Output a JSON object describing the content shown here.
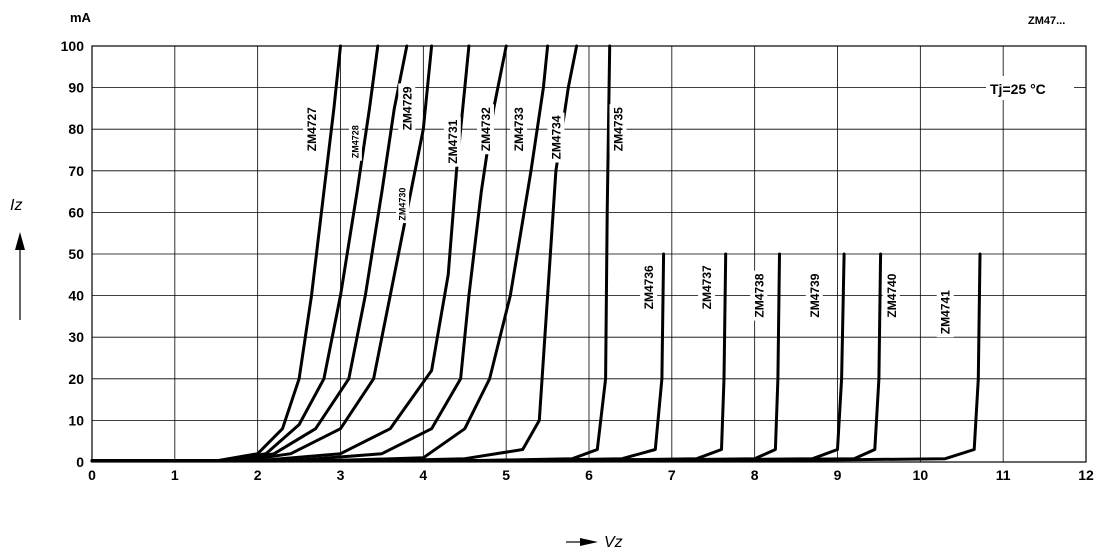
{
  "header": {
    "part_label": "ZM47..."
  },
  "chart_data": {
    "type": "line",
    "title": "",
    "xlabel": "Vz",
    "ylabel": "Iz",
    "y_unit": "mA",
    "xlim": [
      0,
      12
    ],
    "ylim": [
      0,
      100
    ],
    "x_ticks": [
      "0",
      "1",
      "2",
      "3",
      "4",
      "5",
      "6",
      "7",
      "8",
      "9",
      "10",
      "11",
      "12"
    ],
    "y_ticks": [
      "0",
      "10",
      "20",
      "30",
      "40",
      "50",
      "60",
      "70",
      "80",
      "90",
      "100"
    ],
    "grid": true,
    "condition": "Tj=25 °C",
    "series": [
      {
        "name": "ZM4727",
        "label_at": [
          2.65,
          80
        ],
        "label_small": false,
        "points": [
          [
            0,
            0.3
          ],
          [
            1.5,
            0.3
          ],
          [
            2.0,
            2
          ],
          [
            2.3,
            8
          ],
          [
            2.5,
            20
          ],
          [
            2.65,
            40
          ],
          [
            2.8,
            65
          ],
          [
            2.92,
            85
          ],
          [
            3.0,
            100
          ]
        ]
      },
      {
        "name": "ZM4728",
        "label_at": [
          3.18,
          77
        ],
        "label_small": true,
        "points": [
          [
            0,
            0.3
          ],
          [
            1.6,
            0.3
          ],
          [
            2.1,
            2
          ],
          [
            2.5,
            9
          ],
          [
            2.8,
            20
          ],
          [
            3.0,
            40
          ],
          [
            3.2,
            65
          ],
          [
            3.35,
            85
          ],
          [
            3.45,
            100
          ]
        ]
      },
      {
        "name": "ZM4729",
        "label_at": [
          3.8,
          85
        ],
        "label_small": false,
        "points": [
          [
            0,
            0.3
          ],
          [
            1.7,
            0.3
          ],
          [
            2.2,
            2
          ],
          [
            2.7,
            8
          ],
          [
            3.1,
            20
          ],
          [
            3.3,
            40
          ],
          [
            3.5,
            65
          ],
          [
            3.65,
            85
          ],
          [
            3.8,
            100
          ]
        ]
      },
      {
        "name": "ZM4730",
        "label_at": [
          3.75,
          62
        ],
        "label_small": true,
        "points": [
          [
            0,
            0.3
          ],
          [
            1.8,
            0.3
          ],
          [
            2.4,
            2
          ],
          [
            3.0,
            8
          ],
          [
            3.4,
            20
          ],
          [
            3.6,
            40
          ],
          [
            3.85,
            65
          ],
          [
            4.0,
            80
          ],
          [
            4.1,
            100
          ]
        ]
      },
      {
        "name": "ZM4731",
        "label_at": [
          4.35,
          77
        ],
        "label_small": false,
        "points": [
          [
            0,
            0.3
          ],
          [
            2.0,
            0.3
          ],
          [
            3.0,
            2
          ],
          [
            3.6,
            8
          ],
          [
            4.1,
            22
          ],
          [
            4.3,
            45
          ],
          [
            4.4,
            70
          ],
          [
            4.5,
            90
          ],
          [
            4.55,
            100
          ]
        ]
      },
      {
        "name": "ZM4732",
        "label_at": [
          4.75,
          80
        ],
        "label_small": false,
        "points": [
          [
            0,
            0.3
          ],
          [
            2.4,
            0.3
          ],
          [
            3.5,
            2
          ],
          [
            4.1,
            8
          ],
          [
            4.45,
            20
          ],
          [
            4.55,
            40
          ],
          [
            4.7,
            65
          ],
          [
            4.85,
            85
          ],
          [
            5.0,
            100
          ]
        ]
      },
      {
        "name": "ZM4733",
        "label_at": [
          5.15,
          80
        ],
        "label_small": false,
        "points": [
          [
            0,
            0.3
          ],
          [
            2.8,
            0.3
          ],
          [
            4.0,
            1
          ],
          [
            4.5,
            8
          ],
          [
            4.8,
            20
          ],
          [
            5.05,
            40
          ],
          [
            5.3,
            70
          ],
          [
            5.45,
            90
          ],
          [
            5.5,
            100
          ]
        ]
      },
      {
        "name": "ZM4734",
        "label_at": [
          5.6,
          78
        ],
        "label_small": false,
        "points": [
          [
            0,
            0.3
          ],
          [
            3.5,
            0.3
          ],
          [
            4.5,
            0.8
          ],
          [
            5.2,
            3
          ],
          [
            5.4,
            10
          ],
          [
            5.5,
            40
          ],
          [
            5.6,
            70
          ],
          [
            5.75,
            90
          ],
          [
            5.85,
            100
          ]
        ]
      },
      {
        "name": "ZM4735",
        "label_at": [
          6.35,
          80
        ],
        "label_small": false,
        "points": [
          [
            0,
            0.3
          ],
          [
            4.5,
            0.3
          ],
          [
            5.8,
            0.8
          ],
          [
            6.1,
            3
          ],
          [
            6.2,
            20
          ],
          [
            6.22,
            60
          ],
          [
            6.25,
            100
          ]
        ]
      },
      {
        "name": "ZM4736",
        "label_at": [
          6.72,
          42
        ],
        "label_small": false,
        "points": [
          [
            0,
            0.3
          ],
          [
            5.0,
            0.3
          ],
          [
            6.4,
            0.8
          ],
          [
            6.8,
            3
          ],
          [
            6.88,
            20
          ],
          [
            6.9,
            50
          ]
        ]
      },
      {
        "name": "ZM4737",
        "label_at": [
          7.42,
          42
        ],
        "label_small": false,
        "points": [
          [
            0,
            0.3
          ],
          [
            5.5,
            0.3
          ],
          [
            7.3,
            0.8
          ],
          [
            7.6,
            3
          ],
          [
            7.63,
            20
          ],
          [
            7.65,
            50
          ]
        ]
      },
      {
        "name": "ZM4738",
        "label_at": [
          8.05,
          40
        ],
        "label_small": false,
        "points": [
          [
            0,
            0.3
          ],
          [
            6.0,
            0.3
          ],
          [
            8.0,
            0.8
          ],
          [
            8.25,
            3
          ],
          [
            8.28,
            20
          ],
          [
            8.3,
            50
          ]
        ]
      },
      {
        "name": "ZM4739",
        "label_at": [
          8.72,
          40
        ],
        "label_small": false,
        "points": [
          [
            0,
            0.3
          ],
          [
            6.5,
            0.3
          ],
          [
            8.7,
            0.8
          ],
          [
            9.0,
            3
          ],
          [
            9.05,
            20
          ],
          [
            9.08,
            50
          ]
        ]
      },
      {
        "name": "ZM4740",
        "label_at": [
          9.65,
          40
        ],
        "label_small": false,
        "points": [
          [
            0,
            0.3
          ],
          [
            7.0,
            0.3
          ],
          [
            9.2,
            0.8
          ],
          [
            9.45,
            3
          ],
          [
            9.5,
            20
          ],
          [
            9.52,
            50
          ]
        ]
      },
      {
        "name": "ZM4741",
        "label_at": [
          10.3,
          36
        ],
        "label_small": false,
        "points": [
          [
            0,
            0.3
          ],
          [
            8.0,
            0.3
          ],
          [
            10.3,
            0.8
          ],
          [
            10.65,
            3
          ],
          [
            10.7,
            20
          ],
          [
            10.72,
            50
          ]
        ]
      }
    ]
  }
}
